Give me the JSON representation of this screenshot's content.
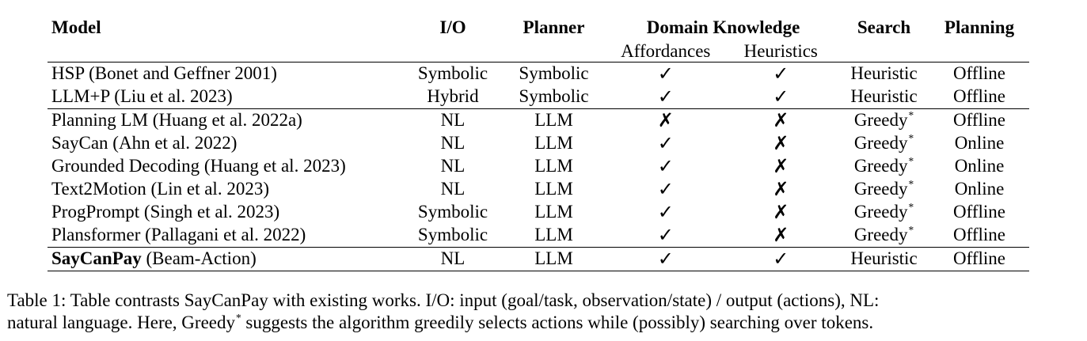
{
  "table": {
    "headers": {
      "model": "Model",
      "io": "I/O",
      "planner": "Planner",
      "domain_knowledge": "Domain Knowledge",
      "affordances": "Affordances",
      "heuristics": "Heuristics",
      "search": "Search",
      "planning": "Planning"
    },
    "rows": [
      {
        "model": "HSP (Bonet and Geffner 2001)",
        "io": "Symbolic",
        "planner": "Symbolic",
        "affordances": "✓",
        "heuristics": "✓",
        "search": "Heuristic",
        "planning": "Offline"
      },
      {
        "model": "LLM+P (Liu et al. 2023)",
        "io": "Hybrid",
        "planner": "Symbolic",
        "affordances": "✓",
        "heuristics": "✓",
        "search": "Heuristic",
        "planning": "Offline"
      },
      {
        "model": "Planning LM (Huang et al. 2022a)",
        "io": "NL",
        "planner": "LLM",
        "affordances": "✗",
        "heuristics": "✗",
        "search": "Greedy",
        "search_sup": "*",
        "planning": "Offline"
      },
      {
        "model": "SayCan (Ahn et al. 2022)",
        "io": "NL",
        "planner": "LLM",
        "affordances": "✓",
        "heuristics": "✗",
        "search": "Greedy",
        "search_sup": "*",
        "planning": "Online"
      },
      {
        "model": "Grounded Decoding (Huang et al. 2023)",
        "io": "NL",
        "planner": "LLM",
        "affordances": "✓",
        "heuristics": "✗",
        "search": "Greedy",
        "search_sup": "*",
        "planning": "Online"
      },
      {
        "model": "Text2Motion (Lin et al. 2023)",
        "io": "NL",
        "planner": "LLM",
        "affordances": "✓",
        "heuristics": "✗",
        "search": "Greedy",
        "search_sup": "*",
        "planning": "Online"
      },
      {
        "model": "ProgPrompt (Singh et al. 2023)",
        "io": "Symbolic",
        "planner": "LLM",
        "affordances": "✓",
        "heuristics": "✗",
        "search": "Greedy",
        "search_sup": "*",
        "planning": "Offline"
      },
      {
        "model": "Plansformer (Pallagani et al. 2022)",
        "io": "Symbolic",
        "planner": "LLM",
        "affordances": "✓",
        "heuristics": "✗",
        "search": "Greedy",
        "search_sup": "*",
        "planning": "Offline"
      },
      {
        "model_bold": "SayCanPay",
        "model_rest": " (Beam-Action)",
        "io": "NL",
        "planner": "LLM",
        "affordances": "✓",
        "heuristics": "✓",
        "search": "Heuristic",
        "planning": "Offline"
      }
    ]
  },
  "caption": {
    "line1": "Table 1: Table contrasts SayCanPay with existing works. I/O: input (goal/task, observation/state) / output (actions), NL:",
    "line2_prefix": "natural language. Here, Greedy",
    "line2_sup": "*",
    "line2_suffix": " suggests the algorithm greedily selects actions while (possibly) searching over tokens."
  }
}
